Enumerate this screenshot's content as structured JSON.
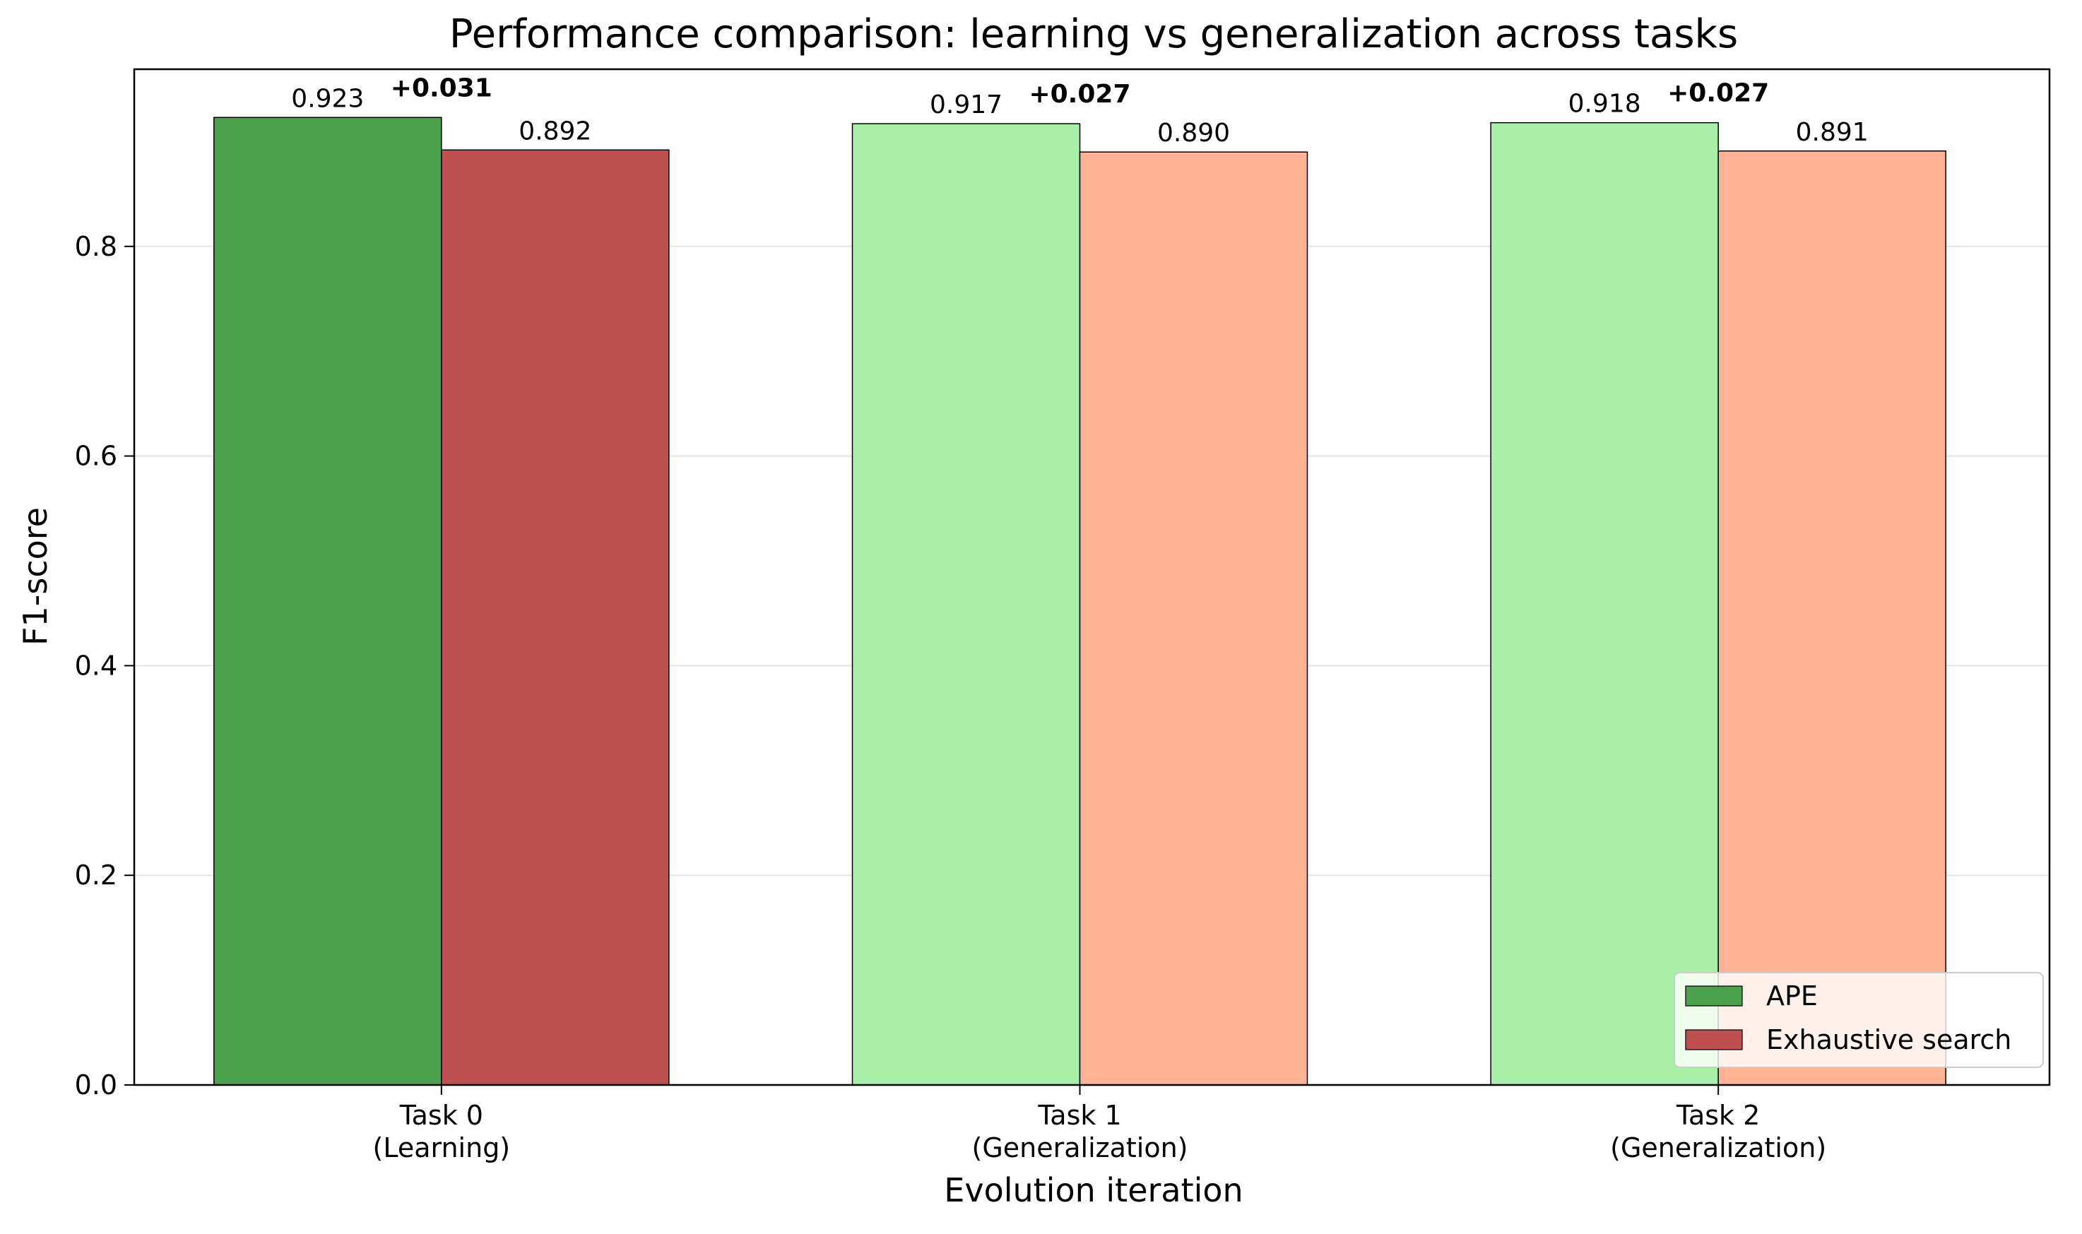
{
  "chart_data": {
    "type": "bar",
    "title": "Performance comparison: learning vs generalization across tasks",
    "xlabel": "Evolution iteration",
    "ylabel": "F1-score",
    "ylim": [
      0,
      0.969
    ],
    "yticks": [
      "0.0",
      "0.2",
      "0.4",
      "0.6",
      "0.8"
    ],
    "ytick_values": [
      0.0,
      0.2,
      0.4,
      0.6,
      0.8
    ],
    "grid": "horizontal",
    "legend_position": "bottom-right",
    "categories": [
      {
        "line1": "Task 0",
        "line2": "(Learning)"
      },
      {
        "line1": "Task 1",
        "line2": "(Generalization)"
      },
      {
        "line1": "Task 2",
        "line2": "(Generalization)"
      }
    ],
    "series": [
      {
        "name": "APE",
        "values": [
          0.923,
          0.917,
          0.918
        ],
        "labels": [
          "0.923",
          "0.917",
          "0.918"
        ],
        "colors": [
          "#4ca14c",
          "#a8f0a8",
          "#a8f0a8"
        ]
      },
      {
        "name": "Exhaustive search",
        "values": [
          0.892,
          0.89,
          0.891
        ],
        "labels": [
          "0.892",
          "0.890",
          "0.891"
        ],
        "colors": [
          "#c05050",
          "#ffb394",
          "#ffb394"
        ]
      }
    ],
    "differences": [
      "+0.031",
      "+0.027",
      "+0.027"
    ],
    "difference_color": "#008000",
    "legend_colors": [
      "#4ca14c",
      "#c05050"
    ]
  }
}
